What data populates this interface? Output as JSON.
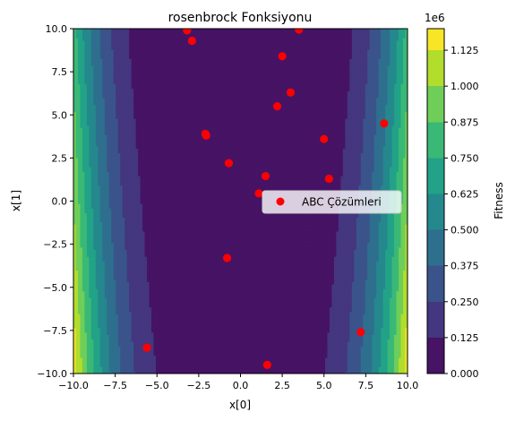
{
  "chart_data": {
    "type": "scatter",
    "title": "rosenbrock Fonksiyonu",
    "xlabel": "x[0]",
    "ylabel": "x[1]",
    "xlim": [
      -10,
      10
    ],
    "ylim": [
      -10,
      10
    ],
    "x_ticks": [
      -10.0,
      -7.5,
      -5.0,
      -2.5,
      0.0,
      2.5,
      5.0,
      7.5,
      10.0
    ],
    "x_tick_labels": [
      "−10.0",
      "−7.5",
      "−5.0",
      "−2.5",
      "0.0",
      "2.5",
      "5.0",
      "7.5",
      "10.0"
    ],
    "y_ticks": [
      -10.0,
      -7.5,
      -5.0,
      -2.5,
      0.0,
      2.5,
      5.0,
      7.5,
      10.0
    ],
    "y_tick_labels": [
      "−10.0",
      "−7.5",
      "−5.0",
      "−2.5",
      "0.0",
      "2.5",
      "5.0",
      "7.5",
      "10.0"
    ],
    "background": {
      "type": "filled-contour",
      "function": "rosenbrock",
      "colormap": "viridis",
      "levels": [
        0,
        0.125,
        0.25,
        0.375,
        0.5,
        0.625,
        0.75,
        0.875,
        1.0,
        1.125
      ]
    },
    "series": [
      {
        "name": "ABC Çözümleri",
        "color": "#ff0000",
        "points": [
          {
            "x": -3.2,
            "y": 9.9
          },
          {
            "x": 3.5,
            "y": 9.95
          },
          {
            "x": -2.9,
            "y": 9.3
          },
          {
            "x": 2.5,
            "y": 8.4
          },
          {
            "x": 3.0,
            "y": 6.3
          },
          {
            "x": 2.2,
            "y": 5.5
          },
          {
            "x": 8.6,
            "y": 4.5
          },
          {
            "x": -2.1,
            "y": 3.9
          },
          {
            "x": -2.05,
            "y": 3.8
          },
          {
            "x": 5.0,
            "y": 3.6
          },
          {
            "x": -0.7,
            "y": 2.2
          },
          {
            "x": 1.5,
            "y": 1.45
          },
          {
            "x": 5.3,
            "y": 1.3
          },
          {
            "x": 1.1,
            "y": 0.45
          },
          {
            "x": -0.8,
            "y": -3.3
          },
          {
            "x": 7.2,
            "y": -7.6
          },
          {
            "x": -5.6,
            "y": -8.5
          },
          {
            "x": 1.6,
            "y": -9.5
          }
        ]
      }
    ],
    "legend": {
      "position": "center-right",
      "label": "ABC Çözümleri"
    },
    "colorbar": {
      "label": "Fitness",
      "multiplier": "1e6",
      "range": [
        0,
        1.2
      ],
      "ticks": [
        0.0,
        0.125,
        0.25,
        0.375,
        0.5,
        0.625,
        0.75,
        0.875,
        1.0,
        1.125
      ],
      "tick_labels": [
        "0.000",
        "0.125",
        "0.250",
        "0.375",
        "0.500",
        "0.625",
        "0.750",
        "0.875",
        "1.000",
        "1.125"
      ]
    }
  }
}
